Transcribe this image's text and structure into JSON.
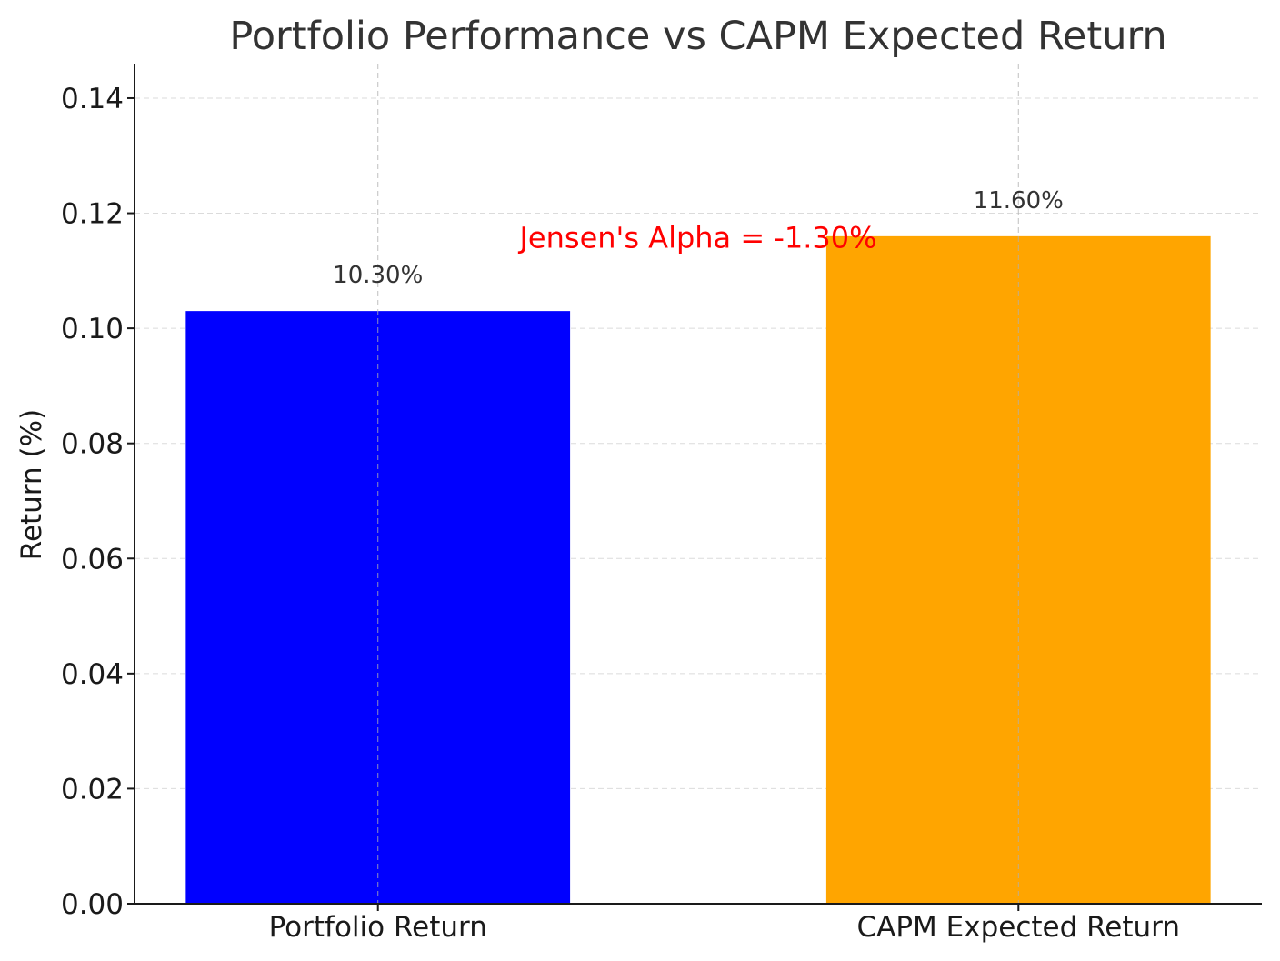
{
  "chart_data": {
    "type": "bar",
    "title": "Portfolio Performance vs CAPM Expected Return",
    "xlabel": "",
    "ylabel": "Return (%)",
    "categories": [
      "Portfolio Return",
      "CAPM Expected Return"
    ],
    "values": [
      0.103,
      0.116
    ],
    "data_labels": [
      "10.30%",
      "11.60%"
    ],
    "colors": [
      "#0000ff",
      "#ffa500"
    ],
    "ylim": [
      0,
      0.146
    ],
    "yticks": [
      0.0,
      0.02,
      0.04,
      0.06,
      0.08,
      0.1,
      0.12,
      0.14
    ],
    "ytick_labels": [
      "0.00",
      "0.02",
      "0.04",
      "0.06",
      "0.08",
      "0.10",
      "0.12",
      "0.14"
    ],
    "grid": true,
    "annotation": {
      "text": "Jensen's Alpha = -1.30%",
      "color": "#ff0000",
      "x_category_position": 0.5,
      "y_value": 0.114
    }
  }
}
